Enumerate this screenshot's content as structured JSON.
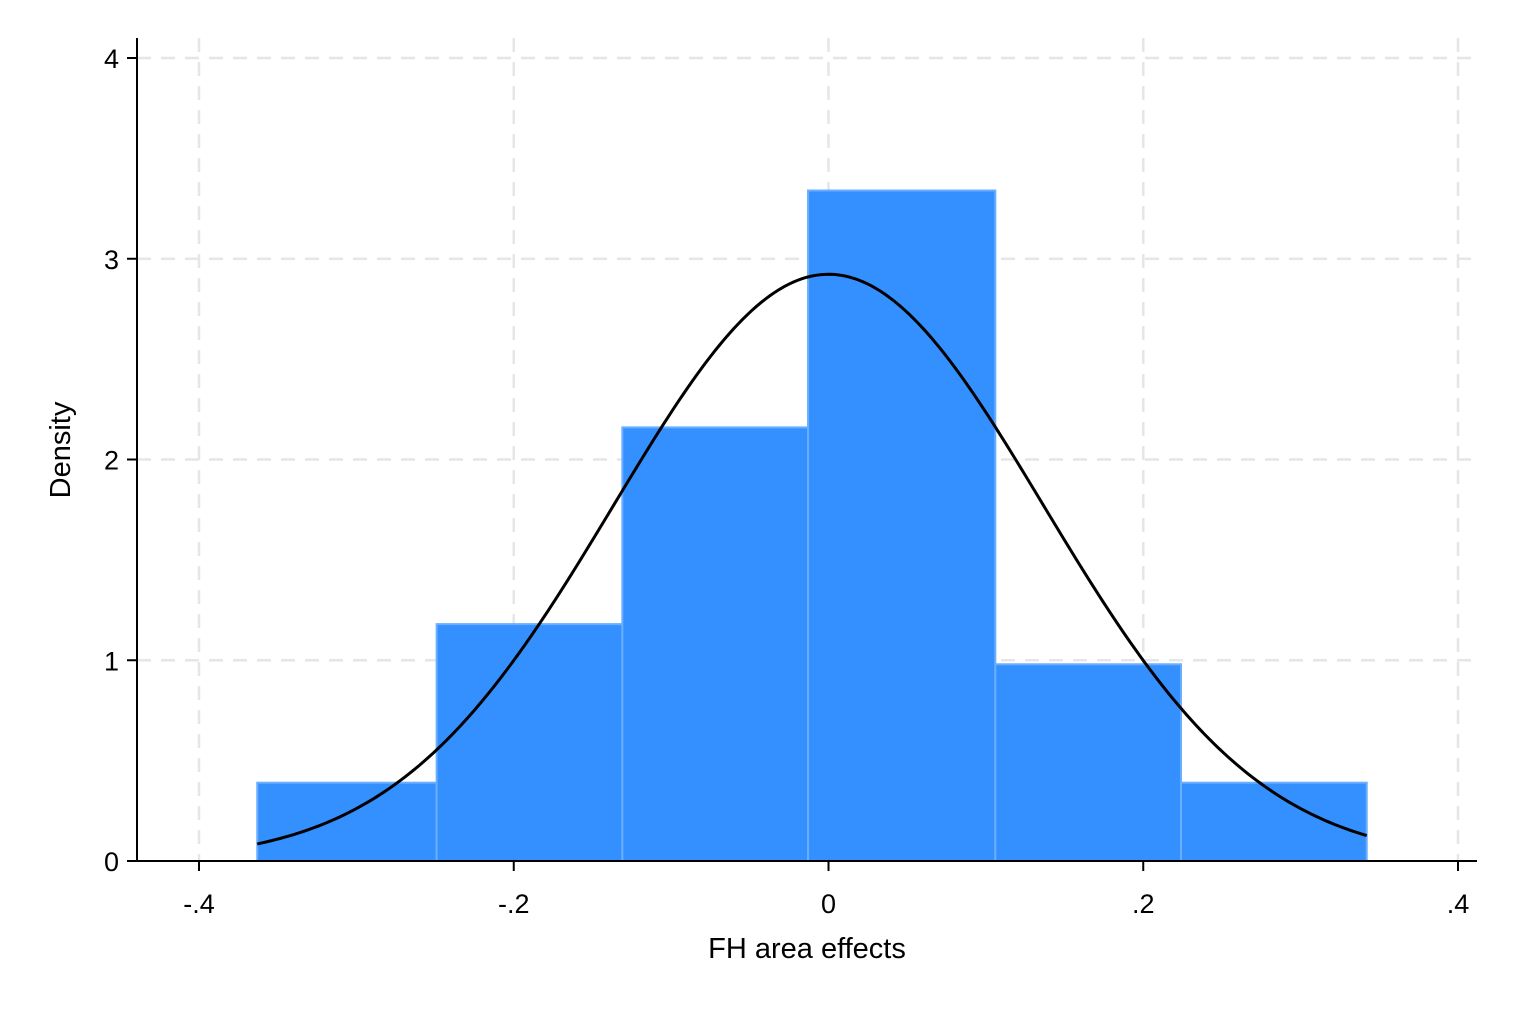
{
  "chart_data": {
    "type": "bar",
    "subtype": "histogram",
    "title": "",
    "xlabel": "FH area effects",
    "ylabel": "Density",
    "xlim": [
      -0.4,
      0.4
    ],
    "ylim": [
      0,
      4
    ],
    "xticks": [
      -0.4,
      -0.2,
      0,
      0.2,
      0.4
    ],
    "xtick_labels": [
      "-.4",
      "-.2",
      "0",
      ".2",
      ".4"
    ],
    "yticks": [
      0,
      1,
      2,
      3,
      4
    ],
    "ytick_labels": [
      "0",
      "1",
      "2",
      "3",
      "4"
    ],
    "grid": true,
    "bins": [
      {
        "x0": -0.363,
        "x1": -0.249,
        "density": 0.39
      },
      {
        "x0": -0.249,
        "x1": -0.131,
        "density": 1.18
      },
      {
        "x0": -0.131,
        "x1": -0.013,
        "density": 2.16
      },
      {
        "x0": -0.013,
        "x1": 0.106,
        "density": 3.34
      },
      {
        "x0": 0.106,
        "x1": 0.224,
        "density": 0.98
      },
      {
        "x0": 0.224,
        "x1": 0.342,
        "density": 0.39
      }
    ],
    "normal_overlay": {
      "mean": 0.0,
      "sd": 0.1365,
      "x_range": [
        -0.363,
        0.342
      ]
    },
    "colors": {
      "bar_fill": "#3590ff",
      "bar_edge": "#6aaeff",
      "curve": "#000000",
      "grid": "#e6e6e6"
    }
  }
}
